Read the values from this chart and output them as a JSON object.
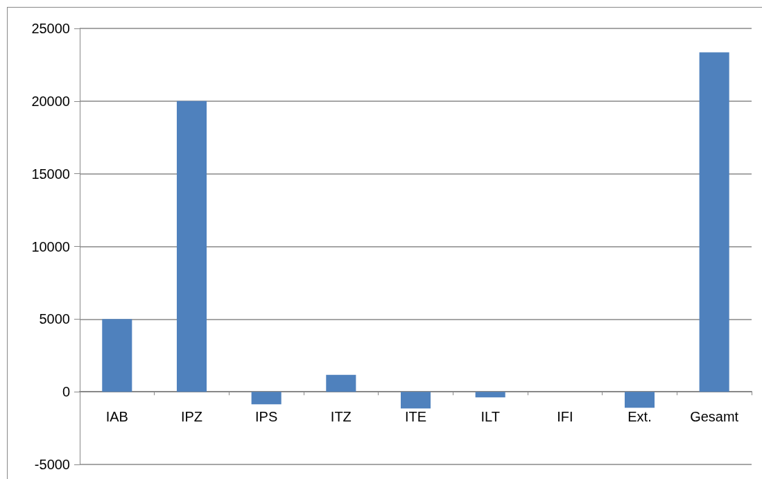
{
  "chart_data": {
    "type": "bar",
    "categories": [
      "IAB",
      "IPZ",
      "IPS",
      "ITZ",
      "ITE",
      "ILT",
      "IFI",
      "Ext.",
      "Gesamt"
    ],
    "values": [
      5000,
      20000,
      -860,
      1160,
      -1150,
      -380,
      0,
      -1100,
      23350
    ],
    "color": "#4f81bd",
    "ylim": [
      -5000,
      25000
    ],
    "yticks": [
      -5000,
      0,
      5000,
      10000,
      15000,
      20000,
      25000
    ],
    "grid": "y"
  }
}
